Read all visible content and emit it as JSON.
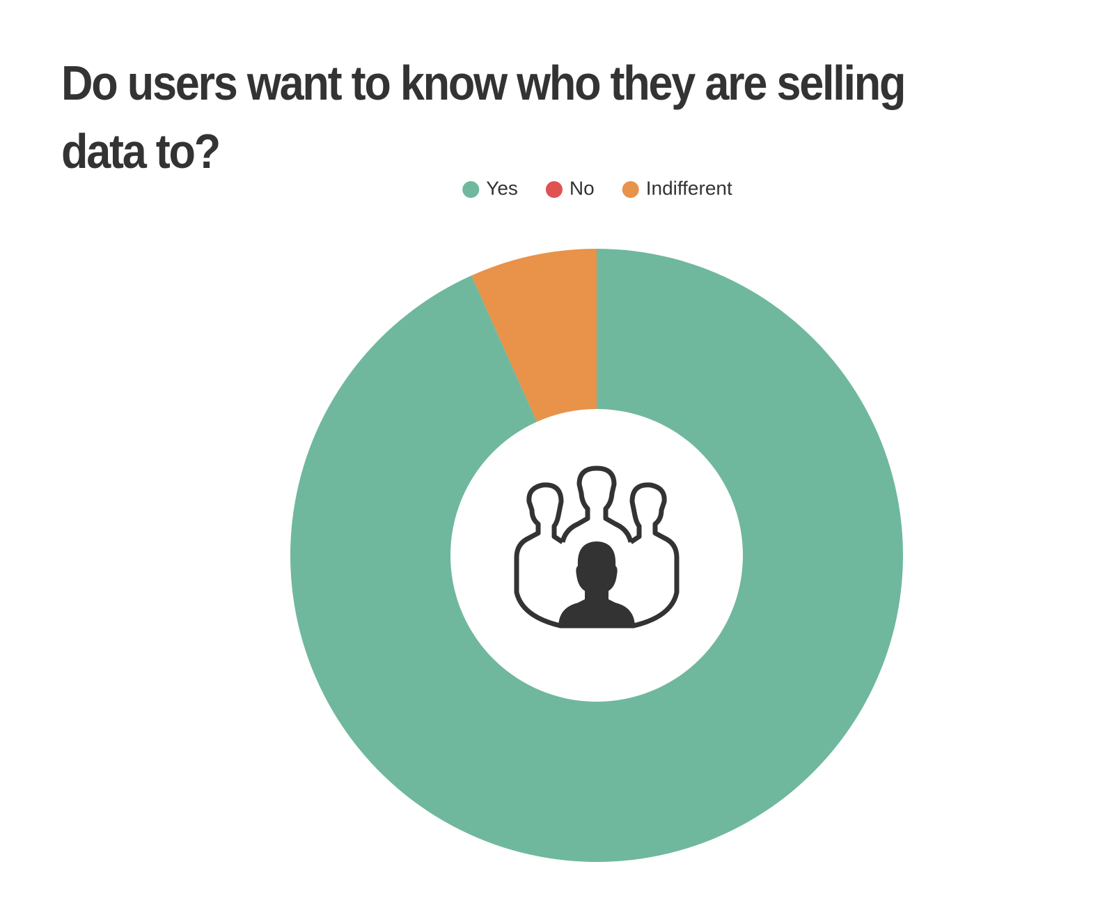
{
  "chart_data": {
    "type": "donut",
    "title": "Do users want to know who they are selling data to?",
    "categories": [
      "Yes",
      "No",
      "Indifferent"
    ],
    "values": [
      93.3,
      0,
      6.7
    ],
    "colors": [
      "#6fb89d",
      "#e05252",
      "#e8924a"
    ],
    "legend": "top"
  }
}
